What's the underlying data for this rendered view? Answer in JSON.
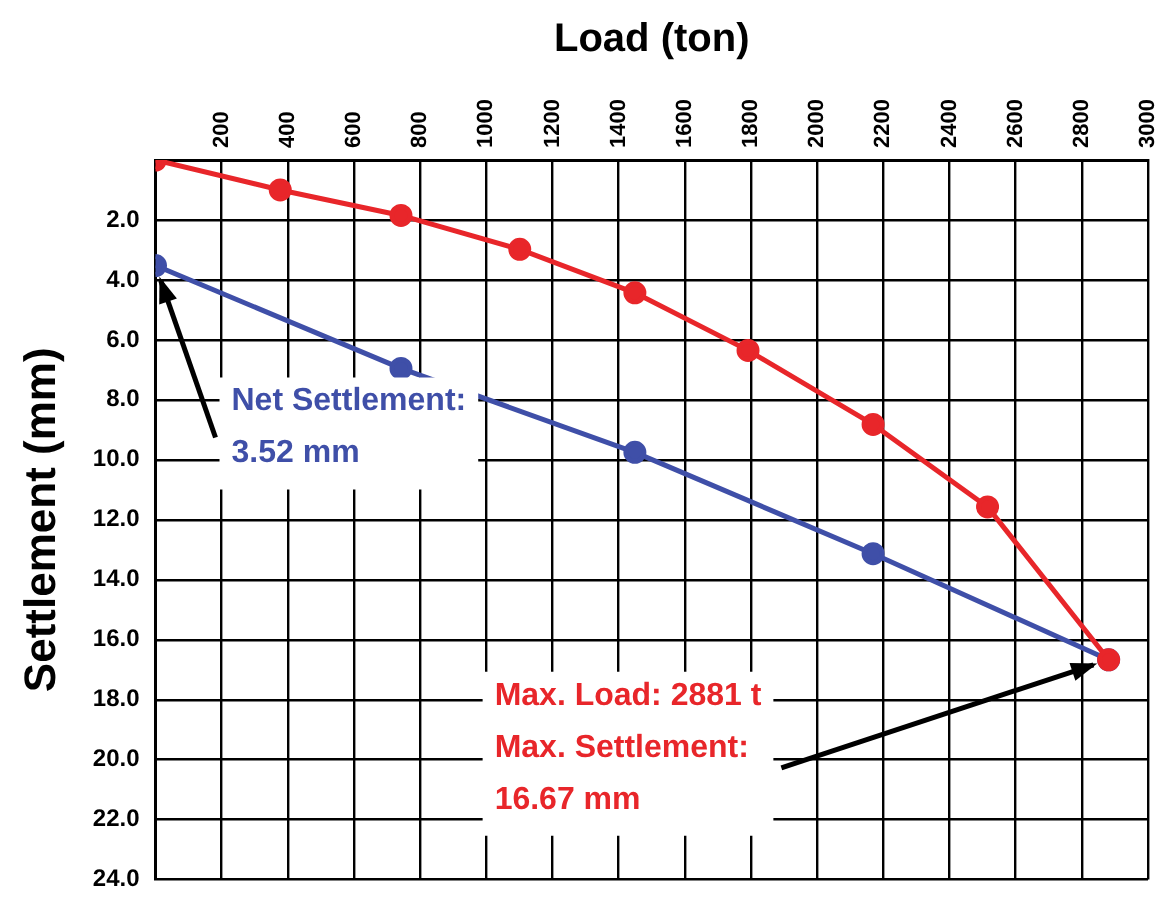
{
  "chart_data": {
    "type": "line",
    "xlabel": "Load (ton)",
    "ylabel": "Settlement (mm)",
    "xlim": [
      0,
      3000
    ],
    "xticks": [
      200,
      400,
      600,
      800,
      1000,
      1200,
      1400,
      1600,
      1800,
      2000,
      2200,
      2400,
      2600,
      2800,
      3000
    ],
    "ylim": [
      24,
      0
    ],
    "yticks": [
      {
        "value": 2,
        "label": "2.0"
      },
      {
        "value": 4,
        "label": "4.0"
      },
      {
        "value": 6,
        "label": "6.0"
      },
      {
        "value": 8,
        "label": "8.0"
      },
      {
        "value": 10,
        "label": "10.0"
      },
      {
        "value": 12,
        "label": "12.0"
      },
      {
        "value": 14,
        "label": "14.0"
      },
      {
        "value": 16,
        "label": "16.0"
      },
      {
        "value": 18,
        "label": "18.0"
      },
      {
        "value": 20,
        "label": "20.0"
      },
      {
        "value": 22,
        "label": "22.0"
      },
      {
        "value": 24,
        "label": "24.0"
      }
    ],
    "series": [
      {
        "color": "#e8262a",
        "x": [
          0,
          377,
          742,
          1101,
          1449,
          1791,
          2169,
          2515,
          2881
        ],
        "values": [
          0,
          1.0,
          1.85,
          2.98,
          4.43,
          6.35,
          8.82,
          11.57,
          16.67
        ]
      },
      {
        "color": "#3f4fa8",
        "x": [
          0,
          742,
          1449,
          2169,
          2881
        ],
        "values": [
          3.52,
          6.95,
          9.75,
          13.13,
          16.67
        ]
      }
    ],
    "annotations": [
      {
        "text": "Max. Load: 2881 t\nMax. Settlement:\n16.67 mm",
        "x": 2881,
        "y": 16.67
      },
      {
        "text": "Net Settlement:\n3.52 mm",
        "x": 0,
        "y": 3.52
      }
    ],
    "grid": true,
    "legend": false,
    "marker": "circle",
    "line_style": "solid"
  }
}
